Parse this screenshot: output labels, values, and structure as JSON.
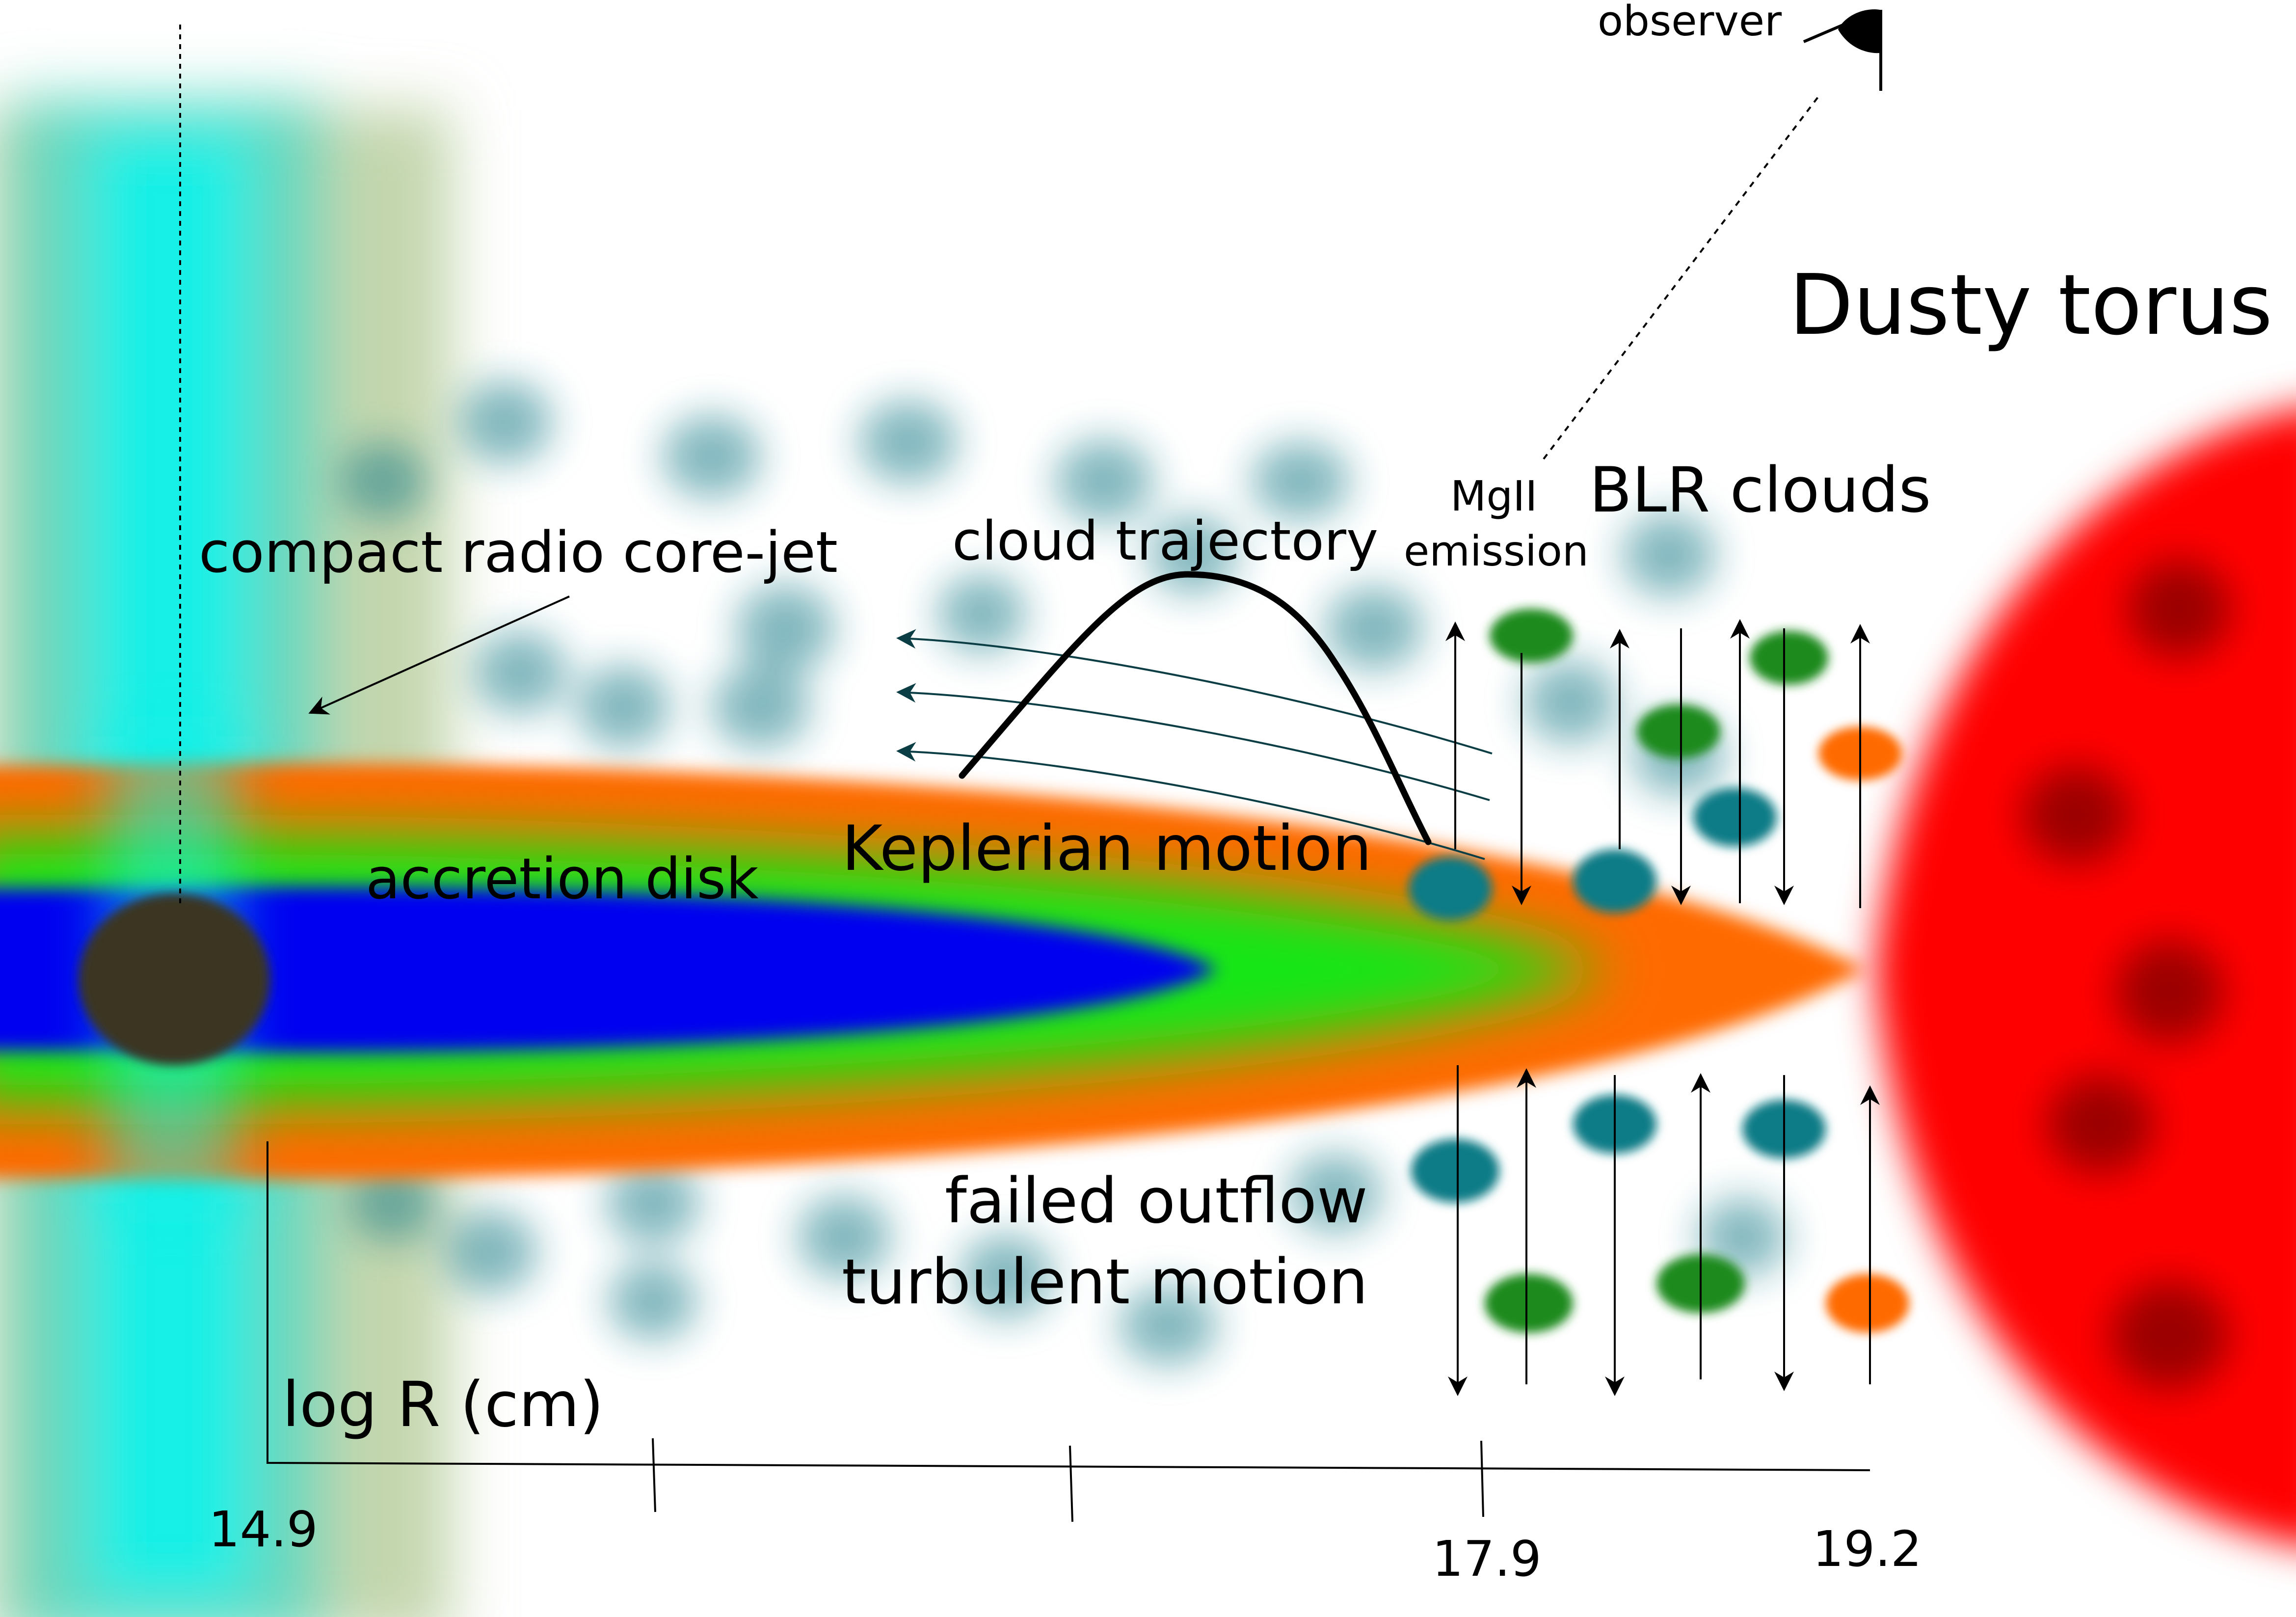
{
  "labels": {
    "observer": "observer",
    "dusty_torus": "Dusty torus",
    "mgii_line1": "MgII",
    "mgii_line2": "emission",
    "blr_clouds": "BLR clouds",
    "core_jet": "compact radio core-jet",
    "cloud_trajectory": "cloud trajectory",
    "keplerian_motion": "Keplerian motion",
    "accretion_disk": "accretion disk",
    "failed_outflow": "failed outflow",
    "turbulent_motion": "turbulent motion",
    "axis_label": "log R (cm)"
  },
  "axis": {
    "tick_labels": [
      "14.9",
      "17.9",
      "19.2"
    ]
  },
  "colors": {
    "jet": "#14f0e6",
    "disk_outer": "#ff6a00",
    "disk_middle": "#12e612",
    "disk_inner": "#0000f0",
    "black_hole": "#3a3520",
    "torus": "#ff0000",
    "torus_clump": "#8a0000",
    "blr_cloud_teal": "#107c86",
    "blr_cloud_green": "#1a8a1a",
    "blr_cloud_orange": "#ff6a00",
    "ink": "#000000"
  }
}
